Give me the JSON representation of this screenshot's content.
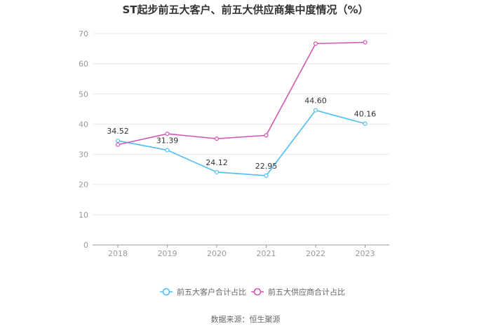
{
  "chart_data": {
    "type": "line",
    "title": "ST起步前五大客户、前五大供应商集中度情况（%）",
    "x": [
      "2018",
      "2019",
      "2020",
      "2021",
      "2022",
      "2023"
    ],
    "ylim": [
      0,
      70
    ],
    "yticks": [
      0,
      10,
      20,
      30,
      40,
      50,
      60,
      70
    ],
    "grid": true,
    "legend_position": "bottom",
    "series": [
      {
        "name": "前五大客户合计占比",
        "color": "#4fbfef",
        "values": [
          34.52,
          31.39,
          24.12,
          22.95,
          44.6,
          40.16
        ],
        "labels": [
          "34.52",
          "31.39",
          "24.12",
          "22.95",
          "44.60",
          "40.16"
        ]
      },
      {
        "name": "前五大供应商合计占比",
        "color": "#d058b4",
        "values": [
          33.2,
          36.8,
          35.2,
          36.3,
          66.7,
          67.1
        ]
      }
    ]
  },
  "source": "数据来源：恒生聚源"
}
